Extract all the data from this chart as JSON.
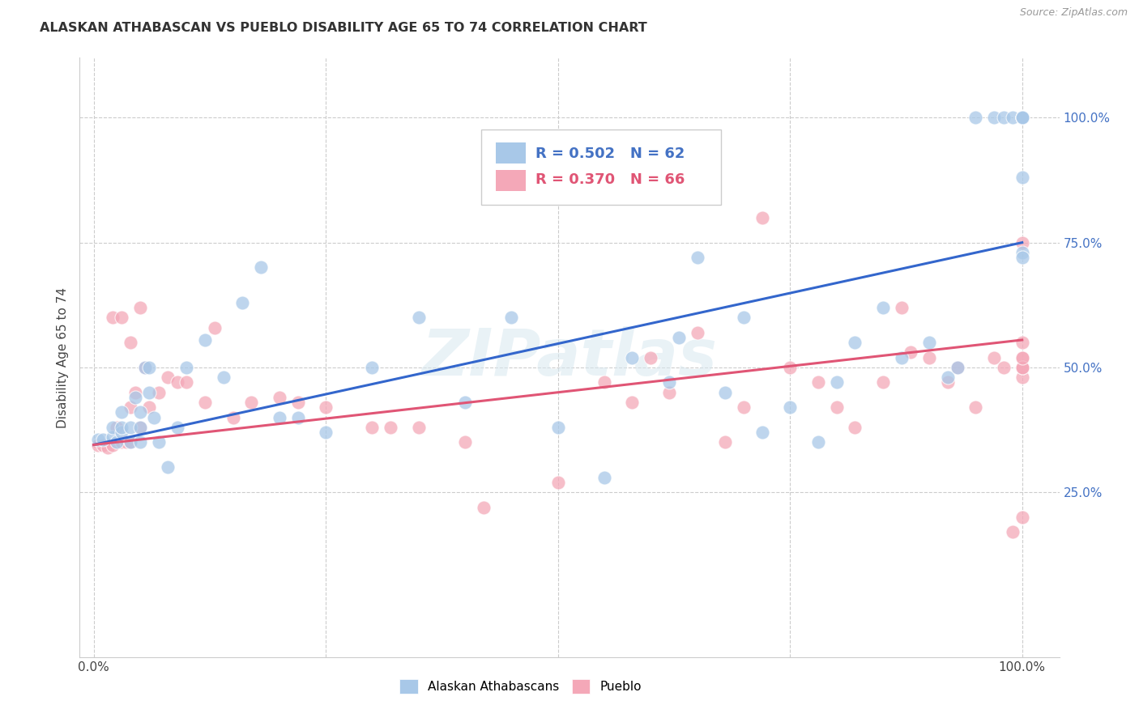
{
  "title": "ALASKAN ATHABASCAN VS PUEBLO DISABILITY AGE 65 TO 74 CORRELATION CHART",
  "source": "Source: ZipAtlas.com",
  "ylabel": "Disability Age 65 to 74",
  "legend_label_blue": "Alaskan Athabascans",
  "legend_label_pink": "Pueblo",
  "blue_color": "#A8C8E8",
  "pink_color": "#F4A8B8",
  "blue_line_color": "#3366CC",
  "pink_line_color": "#E05575",
  "background_color": "#FFFFFF",
  "watermark": "ZIPatlas",
  "blue_r": 0.502,
  "blue_n": 62,
  "pink_r": 0.37,
  "pink_n": 66,
  "blue_intercept": 0.345,
  "blue_slope": 0.405,
  "pink_intercept": 0.345,
  "pink_slope": 0.21,
  "blue_x": [
    0.005,
    0.01,
    0.02,
    0.02,
    0.025,
    0.03,
    0.03,
    0.03,
    0.04,
    0.04,
    0.045,
    0.05,
    0.05,
    0.05,
    0.055,
    0.06,
    0.06,
    0.065,
    0.07,
    0.08,
    0.09,
    0.1,
    0.12,
    0.14,
    0.16,
    0.18,
    0.2,
    0.22,
    0.25,
    0.3,
    0.35,
    0.4,
    0.45,
    0.5,
    0.55,
    0.58,
    0.62,
    0.63,
    0.65,
    0.68,
    0.7,
    0.72,
    0.75,
    0.78,
    0.8,
    0.82,
    0.85,
    0.87,
    0.9,
    0.92,
    0.93,
    0.95,
    0.97,
    0.98,
    0.99,
    1.0,
    1.0,
    1.0,
    1.0,
    1.0,
    1.0,
    1.0
  ],
  "blue_y": [
    0.355,
    0.355,
    0.36,
    0.38,
    0.35,
    0.37,
    0.41,
    0.38,
    0.38,
    0.35,
    0.44,
    0.41,
    0.38,
    0.35,
    0.5,
    0.45,
    0.5,
    0.4,
    0.35,
    0.3,
    0.38,
    0.5,
    0.555,
    0.48,
    0.63,
    0.7,
    0.4,
    0.4,
    0.37,
    0.5,
    0.6,
    0.43,
    0.6,
    0.38,
    0.28,
    0.52,
    0.47,
    0.56,
    0.72,
    0.45,
    0.6,
    0.37,
    0.42,
    0.35,
    0.47,
    0.55,
    0.62,
    0.52,
    0.55,
    0.48,
    0.5,
    1.0,
    1.0,
    1.0,
    1.0,
    1.0,
    1.0,
    1.0,
    1.0,
    0.88,
    0.73,
    0.72
  ],
  "pink_x": [
    0.005,
    0.01,
    0.015,
    0.02,
    0.02,
    0.025,
    0.03,
    0.03,
    0.035,
    0.04,
    0.04,
    0.04,
    0.045,
    0.05,
    0.05,
    0.055,
    0.06,
    0.07,
    0.08,
    0.09,
    0.1,
    0.12,
    0.13,
    0.15,
    0.17,
    0.2,
    0.22,
    0.25,
    0.3,
    0.32,
    0.35,
    0.4,
    0.42,
    0.5,
    0.55,
    0.58,
    0.6,
    0.62,
    0.65,
    0.68,
    0.7,
    0.72,
    0.75,
    0.78,
    0.8,
    0.82,
    0.85,
    0.87,
    0.88,
    0.9,
    0.92,
    0.93,
    0.95,
    0.97,
    0.98,
    0.99,
    1.0,
    1.0,
    1.0,
    1.0,
    1.0,
    1.0,
    1.0,
    1.0,
    1.0,
    1.0
  ],
  "pink_y": [
    0.345,
    0.345,
    0.34,
    0.345,
    0.6,
    0.38,
    0.35,
    0.6,
    0.35,
    0.35,
    0.55,
    0.42,
    0.45,
    0.38,
    0.62,
    0.5,
    0.42,
    0.45,
    0.48,
    0.47,
    0.47,
    0.43,
    0.58,
    0.4,
    0.43,
    0.44,
    0.43,
    0.42,
    0.38,
    0.38,
    0.38,
    0.35,
    0.22,
    0.27,
    0.47,
    0.43,
    0.52,
    0.45,
    0.57,
    0.35,
    0.42,
    0.8,
    0.5,
    0.47,
    0.42,
    0.38,
    0.47,
    0.62,
    0.53,
    0.52,
    0.47,
    0.5,
    0.42,
    0.52,
    0.5,
    0.17,
    0.2,
    0.5,
    0.52,
    0.48,
    0.5,
    0.5,
    0.52,
    0.55,
    1.0,
    0.75
  ]
}
